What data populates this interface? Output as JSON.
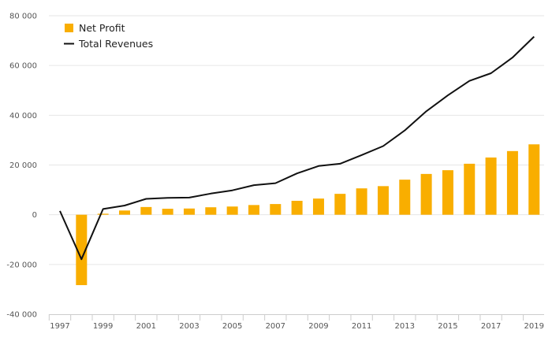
{
  "chart_data": {
    "type": "bar+line",
    "title": "",
    "xlabel": "",
    "ylabel": "",
    "ylim": [
      -40000,
      80000
    ],
    "yticks": [
      80000,
      60000,
      40000,
      20000,
      0,
      -20000,
      -40000
    ],
    "ytick_labels": [
      "80 000",
      "60 000",
      "40 000",
      "20 000",
      "0",
      "-20 000",
      "-40 000"
    ],
    "xtick_labels": [
      "1997",
      "1999",
      "2001",
      "2003",
      "2005",
      "2007",
      "2009",
      "2011",
      "2013",
      "2015",
      "2017",
      "2019"
    ],
    "categories": [
      1997,
      1998,
      1999,
      2000,
      2001,
      2002,
      2003,
      2004,
      2005,
      2006,
      2007,
      2008,
      2009,
      2010,
      2011,
      2012,
      2013,
      2014,
      2015,
      2016,
      2017,
      2018,
      2019
    ],
    "grid": "horizontal",
    "legend_position": "top-left",
    "series": [
      {
        "name": "Net Profit",
        "kind": "bar",
        "color": "#f9ae00",
        "values": [
          0,
          -28300,
          400,
          1700,
          3100,
          2400,
          2500,
          3000,
          3300,
          3900,
          4300,
          5600,
          6500,
          8400,
          10600,
          11500,
          14100,
          16400,
          17900,
          20500,
          23000,
          25600,
          28300
        ]
      },
      {
        "name": "Total Revenues",
        "kind": "line",
        "color": "#111111",
        "values": [
          1500,
          -17900,
          2300,
          3700,
          6400,
          6800,
          6900,
          8500,
          9800,
          11900,
          12700,
          16600,
          19600,
          20500,
          24000,
          27600,
          33900,
          41600,
          48000,
          53800,
          56900,
          63200,
          71600
        ]
      }
    ]
  }
}
